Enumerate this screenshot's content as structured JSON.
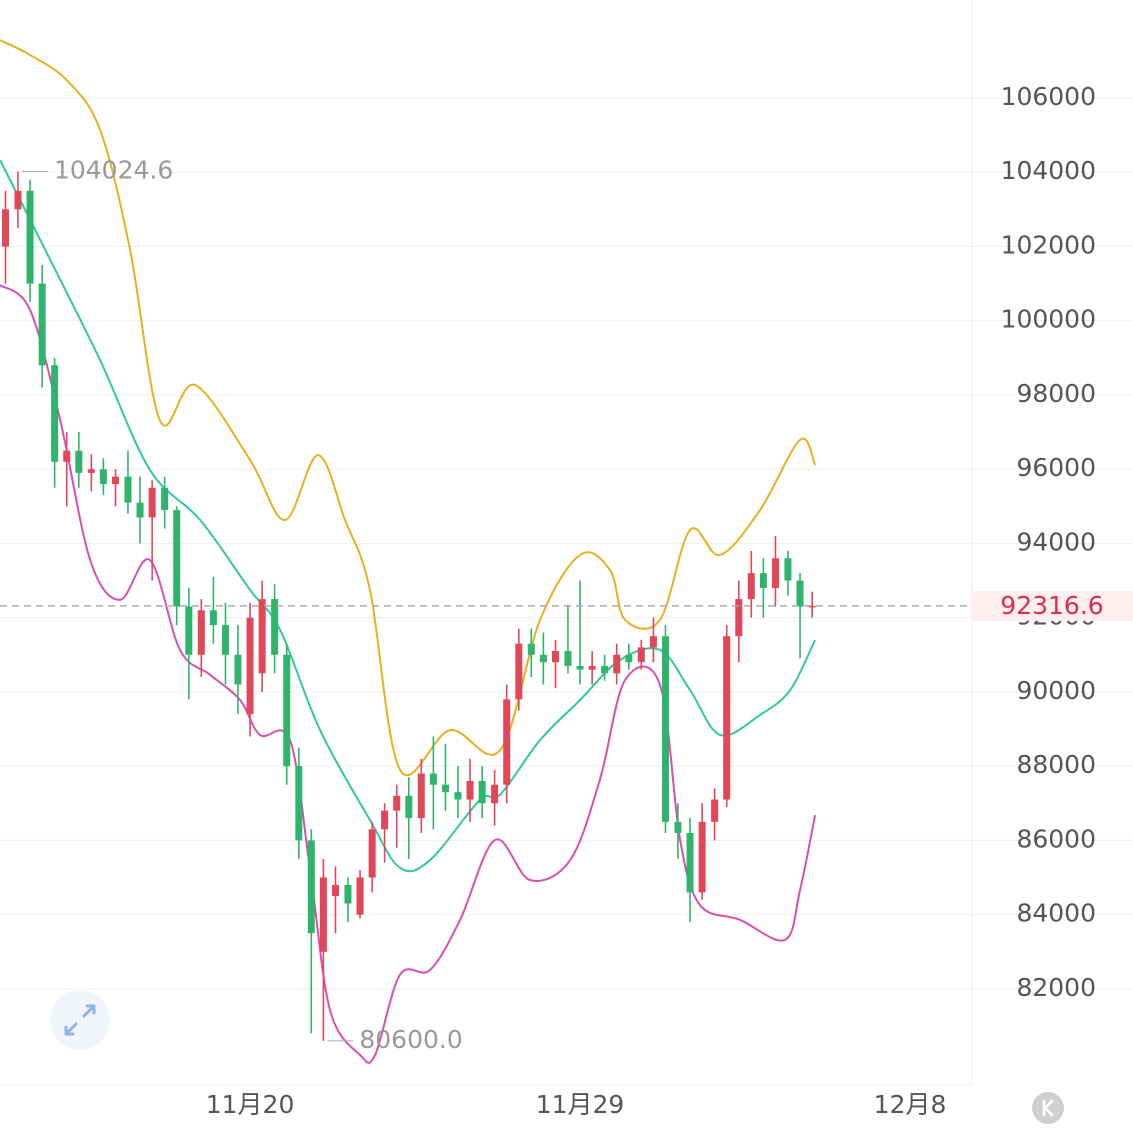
{
  "chart_data": {
    "type": "candlestick",
    "up_color": "#e0475a",
    "down_color": "#2fb56b",
    "xlim": [
      13.18,
      39.69
    ],
    "xticks": [
      {
        "value": 20,
        "label": "11月20"
      },
      {
        "value": 29,
        "label": "11月29"
      },
      {
        "value": 38,
        "label": "12月8"
      }
    ],
    "ylim": [
      79410,
      108640
    ],
    "yticks": [
      82000,
      84000,
      86000,
      88000,
      90000,
      92000,
      94000,
      96000,
      98000,
      100000,
      102000,
      104000,
      106000
    ],
    "grid": true,
    "x": [
      13.33,
      13.67,
      14,
      14.33,
      14.67,
      15,
      15.33,
      15.67,
      16,
      16.33,
      16.67,
      17,
      17.33,
      17.67,
      18,
      18.33,
      18.67,
      19,
      19.33,
      19.67,
      20,
      20.33,
      20.67,
      21,
      21.33,
      21.67,
      22,
      22.33,
      22.67,
      23,
      23.33,
      23.67,
      24,
      24.33,
      24.67,
      25,
      25.33,
      25.67,
      26,
      26.33,
      26.67,
      27,
      27.33,
      27.67,
      28,
      28.33,
      28.67,
      29,
      29.33,
      29.67,
      30,
      30.33,
      30.67,
      31,
      31.33,
      31.67,
      32,
      32.33,
      32.67,
      33,
      33.33,
      33.67,
      34,
      34.33,
      34.67,
      35,
      35.33
    ],
    "open": [
      102000,
      103000,
      103500,
      101000,
      98800,
      96200,
      96500,
      95900,
      96000,
      95600,
      95800,
      95100,
      94700,
      95500,
      94900,
      92300,
      91000,
      92200,
      91800,
      91000,
      89400,
      90500,
      92500,
      91000,
      88000,
      86000,
      83000,
      84500,
      84800,
      84000,
      85000,
      86300,
      86800,
      87200,
      86600,
      87800,
      87500,
      87300,
      87100,
      87600,
      87000,
      87500,
      89800,
      91300,
      91000,
      90800,
      91100,
      90700,
      90600,
      90700,
      90500,
      91000,
      90800,
      91200,
      91500,
      86500,
      86200,
      84600,
      86500,
      87100,
      91500,
      92500,
      93200,
      92800,
      93600,
      93000,
      92300
    ],
    "high": [
      103500,
      104024.6,
      103800,
      101500,
      99000,
      97000,
      97000,
      96400,
      96300,
      96000,
      96500,
      95800,
      95700,
      95800,
      95000,
      92800,
      92500,
      93100,
      92400,
      91800,
      92400,
      93000,
      92900,
      91300,
      88500,
      86300,
      85500,
      85300,
      85000,
      85200,
      86500,
      87000,
      87500,
      87700,
      88200,
      88800,
      88600,
      88000,
      88200,
      88000,
      87900,
      90200,
      91700,
      91700,
      91600,
      91400,
      92300,
      93000,
      91100,
      91000,
      91300,
      91300,
      91400,
      92000,
      91800,
      87000,
      86600,
      87000,
      87400,
      91800,
      93000,
      93800,
      93600,
      94200,
      93800,
      93200,
      92700
    ],
    "low": [
      101000,
      102500,
      100500,
      98200,
      95500,
      95000,
      95500,
      95400,
      95300,
      95000,
      94800,
      94000,
      93000,
      94400,
      91800,
      89800,
      90400,
      91300,
      90200,
      89400,
      88800,
      90000,
      90500,
      87500,
      85500,
      80800,
      80600,
      83500,
      83800,
      83900,
      84600,
      85400,
      85800,
      85500,
      86200,
      86300,
      86800,
      86600,
      86500,
      86600,
      86400,
      87000,
      89500,
      90400,
      90200,
      90100,
      90500,
      90200,
      90200,
      90300,
      90200,
      90600,
      90600,
      90800,
      86200,
      85500,
      83800,
      84400,
      86000,
      86900,
      90800,
      92000,
      92000,
      92300,
      92600,
      90900,
      92000
    ],
    "close": [
      103000,
      103500,
      101000,
      98800,
      96200,
      96500,
      95900,
      96000,
      95600,
      95800,
      95100,
      94700,
      95500,
      94900,
      92300,
      91000,
      92200,
      91800,
      91000,
      90200,
      92000,
      92500,
      91000,
      88000,
      86000,
      83500,
      85000,
      84800,
      84300,
      85000,
      86300,
      86800,
      87200,
      86600,
      87800,
      87500,
      87300,
      87100,
      87600,
      87000,
      87500,
      89800,
      91300,
      91000,
      90800,
      91100,
      90700,
      90600,
      90700,
      90500,
      91000,
      90800,
      91200,
      91500,
      86500,
      86200,
      84600,
      86500,
      87100,
      91500,
      92500,
      93200,
      92800,
      93600,
      93000,
      92300,
      92316.6
    ],
    "bands": [
      {
        "color": "#e8b020",
        "x": [
          13.18,
          14,
          15,
          15.91,
          16.73,
          17.55,
          18.5,
          20,
          20.95,
          21.85,
          22.59,
          23.27,
          24.09,
          25.45,
          26.82,
          27.91,
          29,
          29.82,
          30.23,
          31.18,
          32,
          32.82,
          33.91,
          35,
          35.41
        ],
        "values": [
          107560,
          107160,
          106480,
          105140,
          101900,
          97300,
          98270,
          96250,
          94630,
          96380,
          94630,
          92750,
          87900,
          88970,
          88430,
          91940,
          93690,
          93280,
          91940,
          91940,
          94360,
          93690,
          94900,
          96790,
          96110
        ]
      },
      {
        "color": "#2fc9a0",
        "x": [
          13.18,
          14.55,
          15.91,
          17.27,
          18.64,
          20,
          20.82,
          21.91,
          23.27,
          24.09,
          24.91,
          26.27,
          26.82,
          27.91,
          29,
          30.09,
          31.18,
          32,
          32.82,
          33.91,
          34.73,
          35.41
        ],
        "values": [
          104330,
          101640,
          98940,
          95980,
          94630,
          92750,
          91670,
          88970,
          86550,
          85260,
          85470,
          87090,
          87230,
          88700,
          89780,
          90860,
          91130,
          90050,
          88840,
          89380,
          90050,
          91400
        ]
      },
      {
        "color": "#d94fb0",
        "x": [
          13.18,
          14,
          14.82,
          15.64,
          16.45,
          17.27,
          18.09,
          18.91,
          19.73,
          20.27,
          21.09,
          21.64,
          22.18,
          23,
          23.41,
          24.09,
          24.91,
          25.73,
          26.68,
          27.64,
          28.73,
          29.54,
          30.23,
          31.18,
          31.73,
          32.27,
          33.36,
          34.59,
          35,
          35.41
        ],
        "values": [
          100960,
          100290,
          97330,
          93550,
          92480,
          93550,
          91130,
          90460,
          89780,
          88840,
          88700,
          85200,
          81430,
          80220,
          80220,
          82380,
          82510,
          83860,
          86010,
          84930,
          85470,
          87630,
          90320,
          90190,
          86010,
          84260,
          83860,
          83320,
          84660,
          86680
        ]
      }
    ],
    "max_label": {
      "value": 104024.6,
      "label": "104024.6",
      "x": 13.67
    },
    "min_label": {
      "value": 80600,
      "label": "80600.0",
      "x": 22
    },
    "last_price": {
      "value": 92316.6,
      "label": "92316.6"
    }
  }
}
